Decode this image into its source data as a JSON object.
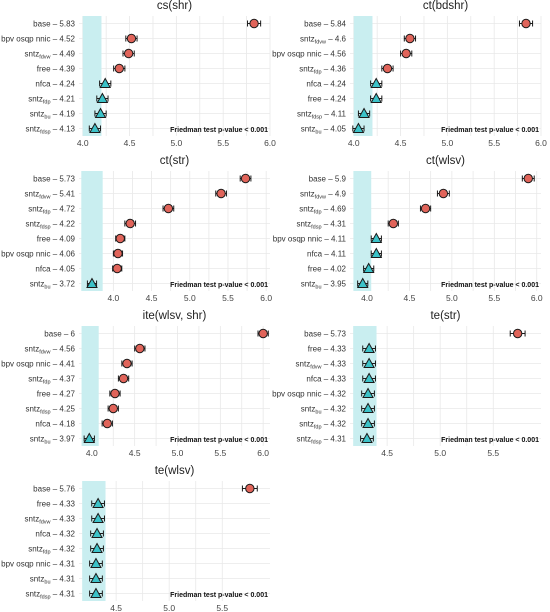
{
  "figure": {
    "colors": {
      "band": "#c9eef0",
      "circle": "#e0645a",
      "triangle": "#3cc2c8",
      "stroke": "#1a1a1a",
      "grid": "#e8e8e8"
    },
    "friedman_text": "Friedman test p-value < 0.001"
  },
  "chart_data": [
    {
      "type": "scatter",
      "title": "cs(shr)",
      "xlim": [
        3.96,
        6.0
      ],
      "xticks": [
        "4.0",
        "4.5",
        "5.0",
        "5.5",
        "6.0"
      ],
      "xtick_values": [
        4.0,
        4.5,
        5.0,
        5.5,
        6.0
      ],
      "band": [
        4.0,
        4.2
      ],
      "points": [
        {
          "label": "base",
          "value": "5.83",
          "x": 5.83,
          "err": 0.07,
          "shape": "circle"
        },
        {
          "label": "bpv osqp nnic",
          "value": "4.52",
          "x": 4.52,
          "err": 0.06,
          "shape": "circle"
        },
        {
          "label": "sntz",
          "sub": "fdvw",
          "value": "4.49",
          "x": 4.49,
          "err": 0.06,
          "shape": "circle"
        },
        {
          "label": "free",
          "value": "4.39",
          "x": 4.39,
          "err": 0.06,
          "shape": "circle"
        },
        {
          "label": "nfca",
          "value": "4.24",
          "x": 4.24,
          "err": 0.06,
          "shape": "triangle"
        },
        {
          "label": "sntz",
          "sub": "fdp",
          "value": "4.21",
          "x": 4.21,
          "err": 0.06,
          "shape": "triangle"
        },
        {
          "label": "sntz",
          "sub": "bu",
          "value": "4.19",
          "x": 4.19,
          "err": 0.06,
          "shape": "triangle"
        },
        {
          "label": "sntz",
          "sub": "fdsp",
          "value": "4.13",
          "x": 4.13,
          "err": 0.06,
          "shape": "triangle"
        }
      ]
    },
    {
      "type": "scatter",
      "title": "ct(bdshr)",
      "xlim": [
        3.96,
        6.0
      ],
      "xticks": [
        "4.0",
        "4.5",
        "5.0",
        "5.5",
        "6.0"
      ],
      "xtick_values": [
        4.0,
        4.5,
        5.0,
        5.5,
        6.0
      ],
      "band": [
        4.0,
        4.2
      ],
      "points": [
        {
          "label": "base",
          "value": "5.84",
          "x": 5.84,
          "err": 0.07,
          "shape": "circle"
        },
        {
          "label": "sntz",
          "sub": "fdvw",
          "value": "4.6",
          "x": 4.6,
          "err": 0.06,
          "shape": "circle"
        },
        {
          "label": "bpv osqp nnic",
          "value": "4.56",
          "x": 4.56,
          "err": 0.06,
          "shape": "circle"
        },
        {
          "label": "sntz",
          "sub": "fdp",
          "value": "4.36",
          "x": 4.36,
          "err": 0.06,
          "shape": "circle"
        },
        {
          "label": "nfca",
          "value": "4.24",
          "x": 4.24,
          "err": 0.06,
          "shape": "triangle"
        },
        {
          "label": "free",
          "value": "4.24",
          "x": 4.24,
          "err": 0.06,
          "shape": "triangle"
        },
        {
          "label": "sntz",
          "sub": "fdsp",
          "value": "4.11",
          "x": 4.11,
          "err": 0.06,
          "shape": "triangle"
        },
        {
          "label": "sntz",
          "sub": "bu",
          "value": "4.05",
          "x": 4.05,
          "err": 0.06,
          "shape": "triangle"
        }
      ]
    },
    {
      "type": "scatter",
      "title": "ct(str)",
      "xlim": [
        3.55,
        6.05
      ],
      "xticks": [
        "4.0",
        "4.5",
        "5.0",
        "5.5",
        "6.0"
      ],
      "xtick_values": [
        4.0,
        4.5,
        5.0,
        5.5,
        6.0
      ],
      "band": [
        3.58,
        3.86
      ],
      "points": [
        {
          "label": "base",
          "value": "5.73",
          "x": 5.73,
          "err": 0.07,
          "shape": "circle"
        },
        {
          "label": "sntz",
          "sub": "fdvw",
          "value": "5.41",
          "x": 5.41,
          "err": 0.07,
          "shape": "circle"
        },
        {
          "label": "sntz",
          "sub": "fdp",
          "value": "4.72",
          "x": 4.72,
          "err": 0.07,
          "shape": "circle"
        },
        {
          "label": "sntz",
          "sub": "fdsp",
          "value": "4.22",
          "x": 4.22,
          "err": 0.07,
          "shape": "circle"
        },
        {
          "label": "free",
          "value": "4.09",
          "x": 4.09,
          "err": 0.06,
          "shape": "circle"
        },
        {
          "label": "bpv osqp nnic",
          "value": "4.06",
          "x": 4.06,
          "err": 0.06,
          "shape": "circle"
        },
        {
          "label": "nfca",
          "value": "4.05",
          "x": 4.05,
          "err": 0.06,
          "shape": "circle"
        },
        {
          "label": "sntz",
          "sub": "bu",
          "value": "3.72",
          "x": 3.72,
          "err": 0.06,
          "shape": "triangle"
        }
      ]
    },
    {
      "type": "scatter",
      "title": "ct(wlsv)",
      "xlim": [
        3.8,
        6.05
      ],
      "xticks": [
        "4.0",
        "4.5",
        "5.0",
        "5.5",
        "6.0"
      ],
      "xtick_values": [
        4.0,
        4.5,
        5.0,
        5.5,
        6.0
      ],
      "band": [
        3.84,
        4.05
      ],
      "points": [
        {
          "label": "base",
          "value": "5.9",
          "x": 5.9,
          "err": 0.07,
          "shape": "circle"
        },
        {
          "label": "sntz",
          "sub": "fdvw",
          "value": "4.9",
          "x": 4.9,
          "err": 0.07,
          "shape": "circle"
        },
        {
          "label": "sntz",
          "sub": "fdp",
          "value": "4.69",
          "x": 4.69,
          "err": 0.06,
          "shape": "circle"
        },
        {
          "label": "sntz",
          "sub": "fdsp",
          "value": "4.31",
          "x": 4.31,
          "err": 0.06,
          "shape": "circle"
        },
        {
          "label": "bpv osqp nnic",
          "value": "4.11",
          "x": 4.11,
          "err": 0.06,
          "shape": "triangle"
        },
        {
          "label": "nfca",
          "value": "4.11",
          "x": 4.11,
          "err": 0.06,
          "shape": "triangle"
        },
        {
          "label": "free",
          "value": "4.02",
          "x": 4.02,
          "err": 0.06,
          "shape": "triangle"
        },
        {
          "label": "sntz",
          "sub": "bu",
          "value": "3.95",
          "x": 3.95,
          "err": 0.06,
          "shape": "triangle"
        }
      ]
    },
    {
      "type": "scatter",
      "title": "ite(wlsv, shr)",
      "xlim": [
        3.85,
        6.08
      ],
      "xticks": [
        "4.0",
        "4.5",
        "5.0",
        "5.5",
        "6.0"
      ],
      "xtick_values": [
        4.0,
        4.5,
        5.0,
        5.5,
        6.0
      ],
      "band": [
        3.88,
        4.08
      ],
      "points": [
        {
          "label": "base",
          "value": "6",
          "x": 6.0,
          "err": 0.06,
          "shape": "circle"
        },
        {
          "label": "sntz",
          "sub": "fdvw",
          "value": "4.56",
          "x": 4.56,
          "err": 0.06,
          "shape": "circle"
        },
        {
          "label": "bpv osqp nnic",
          "value": "4.41",
          "x": 4.41,
          "err": 0.06,
          "shape": "circle"
        },
        {
          "label": "sntz",
          "sub": "fdp",
          "value": "4.37",
          "x": 4.37,
          "err": 0.06,
          "shape": "circle"
        },
        {
          "label": "free",
          "value": "4.27",
          "x": 4.27,
          "err": 0.06,
          "shape": "circle"
        },
        {
          "label": "sntz",
          "sub": "fdsp",
          "value": "4.25",
          "x": 4.25,
          "err": 0.06,
          "shape": "circle"
        },
        {
          "label": "nfca",
          "value": "4.18",
          "x": 4.18,
          "err": 0.06,
          "shape": "circle"
        },
        {
          "label": "sntz",
          "sub": "bu",
          "value": "3.97",
          "x": 3.97,
          "err": 0.06,
          "shape": "triangle"
        }
      ]
    },
    {
      "type": "scatter",
      "title": "te(str)",
      "xlim": [
        4.15,
        5.95
      ],
      "xticks": [
        "4.5",
        "5.0",
        "5.5"
      ],
      "xtick_values": [
        4.5,
        5.0,
        5.5
      ],
      "band": [
        4.18,
        4.4
      ],
      "points": [
        {
          "label": "base",
          "value": "5.73",
          "x": 5.73,
          "err": 0.07,
          "shape": "circle"
        },
        {
          "label": "free",
          "value": "4.33",
          "x": 4.33,
          "err": 0.06,
          "shape": "triangle"
        },
        {
          "label": "sntz",
          "sub": "fdvw",
          "value": "4.33",
          "x": 4.33,
          "err": 0.06,
          "shape": "triangle"
        },
        {
          "label": "nfca",
          "value": "4.33",
          "x": 4.33,
          "err": 0.06,
          "shape": "triangle"
        },
        {
          "label": "bpv osqp nnic",
          "value": "4.32",
          "x": 4.32,
          "err": 0.06,
          "shape": "triangle"
        },
        {
          "label": "sntz",
          "sub": "bu",
          "value": "4.32",
          "x": 4.32,
          "err": 0.06,
          "shape": "triangle"
        },
        {
          "label": "sntz",
          "sub": "fdp",
          "value": "4.32",
          "x": 4.32,
          "err": 0.06,
          "shape": "triangle"
        },
        {
          "label": "sntz",
          "sub": "fdsp",
          "value": "4.31",
          "x": 4.31,
          "err": 0.06,
          "shape": "triangle"
        }
      ]
    },
    {
      "type": "scatter",
      "title": "te(wlsv)",
      "xlim": [
        4.15,
        5.95
      ],
      "xticks": [
        "4.5",
        "5.0",
        "5.5"
      ],
      "xtick_values": [
        4.5,
        5.0,
        5.5
      ],
      "band": [
        4.18,
        4.4
      ],
      "points": [
        {
          "label": "base",
          "value": "5.76",
          "x": 5.76,
          "err": 0.07,
          "shape": "circle"
        },
        {
          "label": "free",
          "value": "4.33",
          "x": 4.33,
          "err": 0.06,
          "shape": "triangle"
        },
        {
          "label": "sntz",
          "sub": "fdvw",
          "value": "4.33",
          "x": 4.33,
          "err": 0.06,
          "shape": "triangle"
        },
        {
          "label": "nfca",
          "value": "4.32",
          "x": 4.32,
          "err": 0.06,
          "shape": "triangle"
        },
        {
          "label": "sntz",
          "sub": "fdp",
          "value": "4.32",
          "x": 4.32,
          "err": 0.06,
          "shape": "triangle"
        },
        {
          "label": "bpv osqp nnic",
          "value": "4.31",
          "x": 4.31,
          "err": 0.06,
          "shape": "triangle"
        },
        {
          "label": "sntz",
          "sub": "bu",
          "value": "4.31",
          "x": 4.31,
          "err": 0.06,
          "shape": "triangle"
        },
        {
          "label": "sntz",
          "sub": "fdsp",
          "value": "4.31",
          "x": 4.31,
          "err": 0.06,
          "shape": "triangle"
        }
      ]
    }
  ]
}
